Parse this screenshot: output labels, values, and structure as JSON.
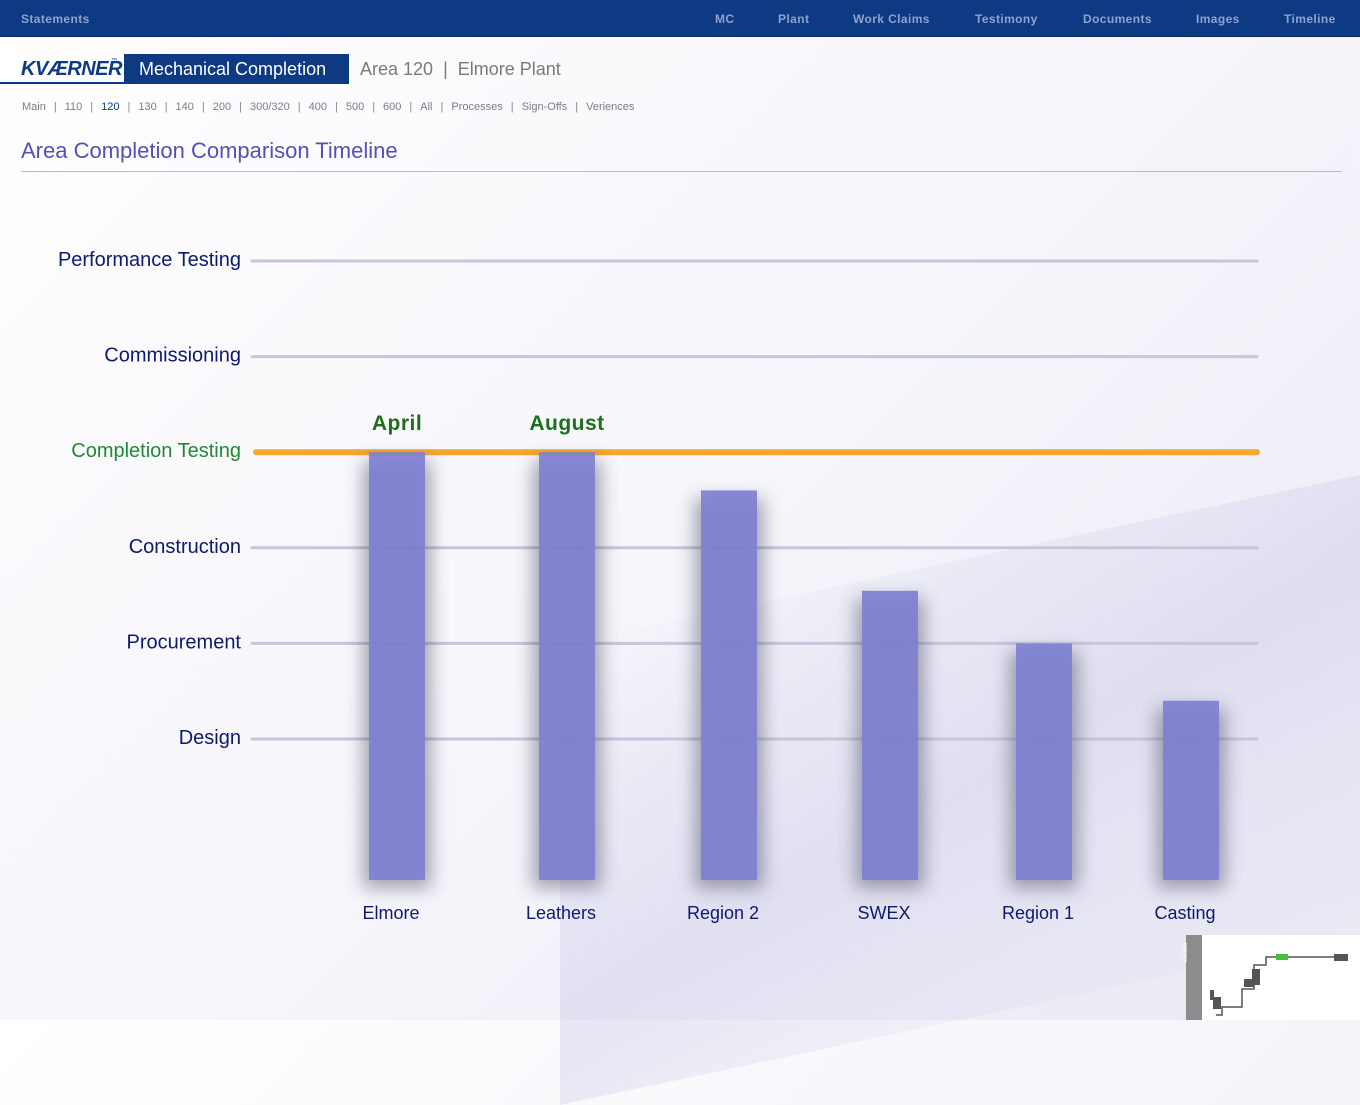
{
  "topnav": {
    "left": "Statements",
    "items": [
      "MC",
      "Plant",
      "Work Claims",
      "Testimony",
      "Documents",
      "Images",
      "Timeline"
    ]
  },
  "header": {
    "logo": "KVÆRNER",
    "logo_mark": "™",
    "section": "Mechanical Completion",
    "area": "Area 120",
    "plant": "Elmore Plant",
    "separator": "|"
  },
  "subnav": {
    "items": [
      "Main",
      "110",
      "120",
      "130",
      "140",
      "200",
      "300/320",
      "400",
      "500",
      "600",
      "All",
      "Processes",
      "Sign-Offs",
      "Veriences"
    ],
    "active": "120"
  },
  "page_title": "Area Completion Comparison Timeline",
  "locator_label": "Locator",
  "colors": {
    "brand": "#0d3a82",
    "bar": "#7e80d2",
    "highlight_line": "#f7a630",
    "highlight_label": "#1f8a34",
    "annotation": "#1d6e1f",
    "stage_label": "#0d1a6e",
    "grid_line": "#c5c5dc"
  },
  "chart_data": {
    "type": "bar",
    "title": "",
    "xlabel": "",
    "ylabel": "",
    "y_stages": [
      "Design",
      "Procurement",
      "Construction",
      "Completion Testing",
      "Commissioning",
      "Performance Testing"
    ],
    "highlighted_stage": "Completion Testing",
    "ylim": [
      0,
      6
    ],
    "categories": [
      "Elmore",
      "Leathers",
      "Region 2",
      "SWEX",
      "Region 1",
      "Casting"
    ],
    "values": [
      4.0,
      4.0,
      3.6,
      2.55,
      2.0,
      1.4
    ],
    "annotations": [
      {
        "category": "Elmore",
        "text": "April"
      },
      {
        "category": "Leathers",
        "text": "August"
      }
    ],
    "grid": true,
    "legend": "none"
  }
}
